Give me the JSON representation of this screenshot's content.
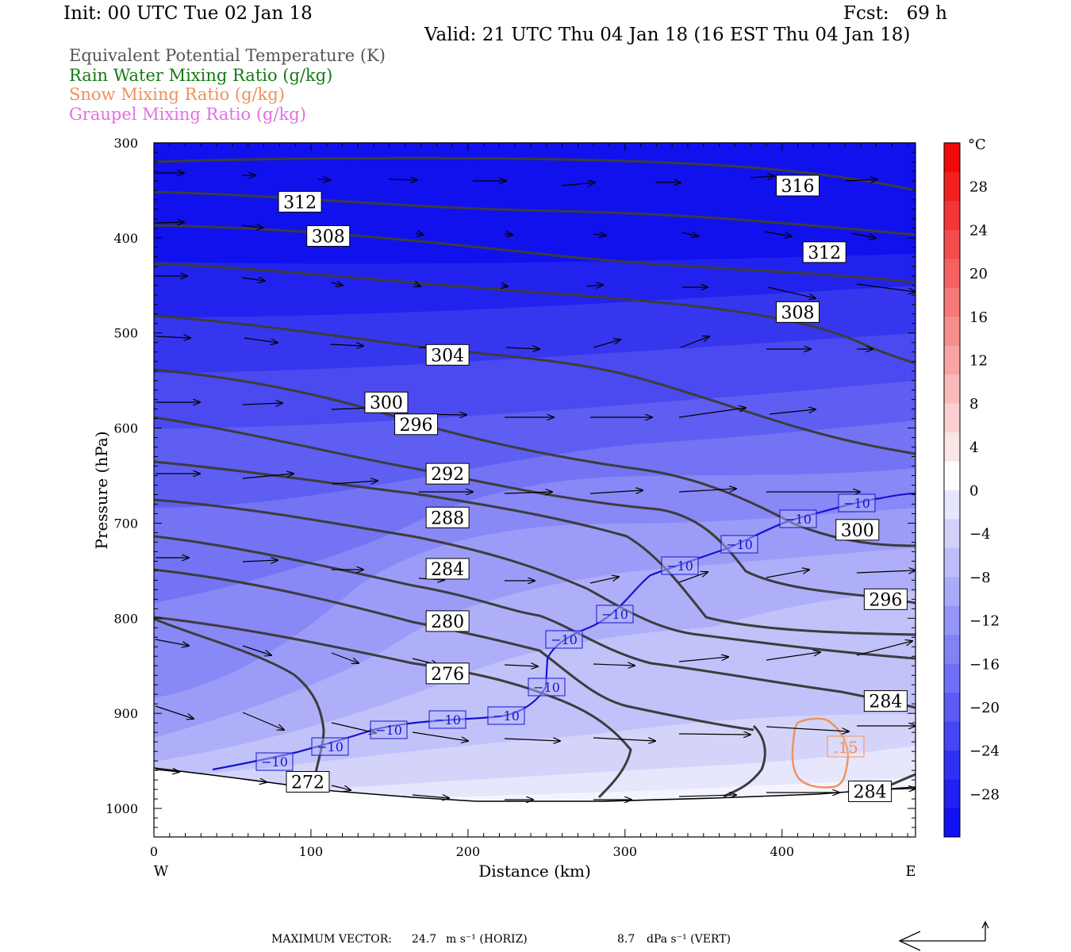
{
  "header": {
    "init": "Init: 00 UTC Tue 02 Jan 18",
    "fcst": "Fcst:   69 h",
    "valid": "Valid: 21 UTC Thu 04 Jan 18 (16 EST Thu 04 Jan 18)"
  },
  "legend": [
    {
      "text": "Equivalent Potential Temperature (K)",
      "color": "#555555"
    },
    {
      "text": "Rain Water Mixing Ratio (g/kg)",
      "color": "#137a13"
    },
    {
      "text": "Snow Mixing Ratio (g/kg)",
      "color": "#f0915a"
    },
    {
      "text": "Graupel Mixing Ratio (g/kg)",
      "color": "#e46fe4"
    }
  ],
  "footer": {
    "max_vector_label": "MAXIMUM VECTOR:",
    "horiz_value": "24.7",
    "horiz_unit": "m s⁻¹ (HORIZ)",
    "vert_value": "8.7",
    "vert_unit": "dPa s⁻¹ (VERT)"
  },
  "colors": {
    "theta_e_line": "#3c3c3c",
    "isotherm": "#1414d2",
    "snow": "#f0915a",
    "arrow": "#000000"
  },
  "chart_data": {
    "type": "heatmap",
    "title": "",
    "xlabel": "Distance (km)",
    "ylabel": "Pressure (hPa)",
    "xlim": [
      0,
      485
    ],
    "ylim": [
      1030,
      300
    ],
    "x_ticks": [
      "0",
      "100",
      "200",
      "300",
      "400"
    ],
    "y_ticks": [
      "300",
      "400",
      "500",
      "600",
      "700",
      "800",
      "900",
      "1000"
    ],
    "x_side_labels": {
      "left": "W",
      "right": "E"
    },
    "colorbar": {
      "unit": "°C",
      "labels": [
        "28",
        "24",
        "20",
        "16",
        "12",
        "8",
        "4",
        "0",
        "−4",
        "−8",
        "−12",
        "−16",
        "−20",
        "−24",
        "−28"
      ],
      "range": [
        -32,
        32
      ],
      "step": 4
    },
    "theta_e_labels": [
      {
        "text": "316",
        "x": 410,
        "p": 345
      },
      {
        "text": "312",
        "x": 93,
        "p": 362
      },
      {
        "text": "312",
        "x": 427,
        "p": 415
      },
      {
        "text": "308",
        "x": 111,
        "p": 398
      },
      {
        "text": "308",
        "x": 410,
        "p": 478
      },
      {
        "text": "304",
        "x": 187,
        "p": 523
      },
      {
        "text": "300",
        "x": 148,
        "p": 573
      },
      {
        "text": "300",
        "x": 448,
        "p": 707
      },
      {
        "text": "296",
        "x": 167,
        "p": 596
      },
      {
        "text": "296",
        "x": 466,
        "p": 780
      },
      {
        "text": "292",
        "x": 187,
        "p": 648
      },
      {
        "text": "288",
        "x": 187,
        "p": 694
      },
      {
        "text": "284",
        "x": 187,
        "p": 748
      },
      {
        "text": "284",
        "x": 466,
        "p": 887
      },
      {
        "text": "284",
        "x": 456,
        "p": 982
      },
      {
        "text": "280",
        "x": 187,
        "p": 803
      },
      {
        "text": "276",
        "x": 187,
        "p": 858
      },
      {
        "text": "272",
        "x": 98,
        "p": 972
      }
    ],
    "isotherm_labels": {
      "text": "−10",
      "count": 13
    },
    "snow_label": ".15",
    "max_vector": {
      "horiz": 24.7,
      "vert": 8.7
    }
  }
}
